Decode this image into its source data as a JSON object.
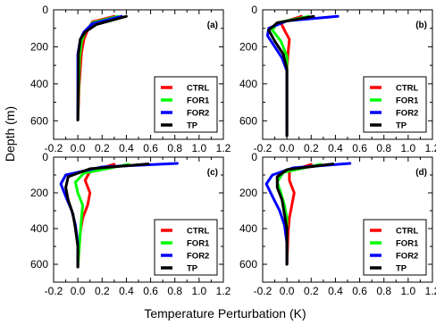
{
  "figure": {
    "ylabel": "Depth (m)",
    "xlabel": "Temperature Perturbation (K)",
    "legend_position": "lower-right",
    "grid": false
  },
  "series_styles": [
    {
      "name": "CTRL",
      "color": "#ff0000"
    },
    {
      "name": "FOR1",
      "color": "#00ff00"
    },
    {
      "name": "FOR2",
      "color": "#0000ff"
    },
    {
      "name": "TP",
      "color": "#000000"
    }
  ],
  "axes": {
    "xlim": [
      -0.2,
      1.2
    ],
    "xticks": [
      -0.2,
      0,
      0.2,
      0.4,
      0.6,
      0.8,
      1,
      1.2
    ],
    "xtick_labels": [
      "-0.2",
      "0.0",
      "0.2",
      "0.4",
      "0.6",
      "0.8",
      "1.0",
      "1.2"
    ],
    "ylim": [
      0,
      700
    ],
    "yticks": [
      0,
      200,
      400,
      600
    ],
    "ytick_labels": [
      "0",
      "200",
      "400",
      "600"
    ],
    "y_inverted": true
  },
  "chart_data": [
    {
      "type": "line",
      "panel_label": "(a)",
      "series": [
        {
          "name": "CTRL",
          "color": "#ff0000",
          "points": [
            [
              0.3,
              35
            ],
            [
              0.12,
              65
            ],
            [
              0.08,
              110
            ],
            [
              0.05,
              160
            ],
            [
              0.03,
              230
            ],
            [
              0.02,
              320
            ],
            [
              0.01,
              420
            ],
            [
              0.005,
              520
            ],
            [
              0.0,
              595
            ]
          ]
        },
        {
          "name": "FOR1",
          "color": "#00ff00",
          "points": [
            [
              0.33,
              35
            ],
            [
              0.12,
              70
            ],
            [
              0.06,
              120
            ],
            [
              0.03,
              170
            ],
            [
              0.015,
              250
            ],
            [
              0.01,
              350
            ],
            [
              0.005,
              450
            ],
            [
              0.0,
              595
            ]
          ]
        },
        {
          "name": "FOR2",
          "color": "#0000ff",
          "points": [
            [
              0.36,
              35
            ],
            [
              0.12,
              75
            ],
            [
              0.05,
              120
            ],
            [
              0.02,
              160
            ],
            [
              0.0,
              240
            ],
            [
              0.0,
              350
            ],
            [
              0.0,
              460
            ],
            [
              0.0,
              595
            ]
          ]
        },
        {
          "name": "TP",
          "color": "#000000",
          "points": [
            [
              0.4,
              35
            ],
            [
              0.15,
              80
            ],
            [
              0.06,
              120
            ],
            [
              0.02,
              160
            ],
            [
              0.005,
              240
            ],
            [
              0.005,
              350
            ],
            [
              0.002,
              460
            ],
            [
              0.0,
              595
            ]
          ]
        }
      ]
    },
    {
      "type": "line",
      "panel_label": "(b)",
      "series": [
        {
          "name": "CTRL",
          "color": "#ff0000",
          "points": [
            [
              0.12,
              35
            ],
            [
              -0.05,
              70
            ],
            [
              -0.02,
              110
            ],
            [
              0.02,
              160
            ],
            [
              0.01,
              230
            ],
            [
              0.0,
              320
            ],
            [
              0.0,
              450
            ],
            [
              0.0,
              600
            ],
            [
              0.0,
              680
            ]
          ]
        },
        {
          "name": "FOR1",
          "color": "#00ff00",
          "points": [
            [
              0.18,
              35
            ],
            [
              -0.08,
              70
            ],
            [
              -0.12,
              110
            ],
            [
              -0.05,
              170
            ],
            [
              0.0,
              250
            ],
            [
              0.0,
              350
            ],
            [
              0.0,
              480
            ],
            [
              0.0,
              620
            ],
            [
              0.0,
              680
            ]
          ]
        },
        {
          "name": "FOR2",
          "color": "#0000ff",
          "points": [
            [
              0.42,
              35
            ],
            [
              0.0,
              60
            ],
            [
              -0.15,
              100
            ],
            [
              -0.16,
              140
            ],
            [
              -0.1,
              200
            ],
            [
              -0.04,
              260
            ],
            [
              0.0,
              330
            ],
            [
              0.0,
              480
            ],
            [
              0.0,
              680
            ]
          ]
        },
        {
          "name": "TP",
          "color": "#000000",
          "points": [
            [
              0.22,
              35
            ],
            [
              -0.08,
              70
            ],
            [
              -0.15,
              110
            ],
            [
              -0.1,
              170
            ],
            [
              -0.03,
              240
            ],
            [
              0.0,
              320
            ],
            [
              0.0,
              450
            ],
            [
              0.0,
              600
            ],
            [
              0.0,
              680
            ]
          ]
        }
      ]
    },
    {
      "type": "line",
      "panel_label": "(c)",
      "series": [
        {
          "name": "CTRL",
          "color": "#ff0000",
          "points": [
            [
              0.3,
              40
            ],
            [
              0.1,
              80
            ],
            [
              0.06,
              130
            ],
            [
              0.1,
              200
            ],
            [
              0.08,
              270
            ],
            [
              0.04,
              340
            ],
            [
              0.02,
              420
            ],
            [
              0.01,
              520
            ],
            [
              0.0,
              615
            ]
          ]
        },
        {
          "name": "FOR1",
          "color": "#00ff00",
          "points": [
            [
              0.42,
              40
            ],
            [
              0.05,
              90
            ],
            [
              -0.02,
              140
            ],
            [
              0.0,
              200
            ],
            [
              0.04,
              270
            ],
            [
              0.03,
              340
            ],
            [
              0.02,
              420
            ],
            [
              0.01,
              520
            ],
            [
              0.0,
              615
            ]
          ]
        },
        {
          "name": "FOR2",
          "color": "#0000ff",
          "points": [
            [
              0.82,
              35
            ],
            [
              0.2,
              55
            ],
            [
              -0.1,
              100
            ],
            [
              -0.14,
              150
            ],
            [
              -0.1,
              220
            ],
            [
              -0.05,
              300
            ],
            [
              -0.02,
              380
            ],
            [
              0.0,
              480
            ],
            [
              0.0,
              615
            ]
          ]
        },
        {
          "name": "TP",
          "color": "#000000",
          "points": [
            [
              0.58,
              38
            ],
            [
              0.1,
              65
            ],
            [
              -0.08,
              110
            ],
            [
              -0.1,
              170
            ],
            [
              -0.08,
              240
            ],
            [
              -0.04,
              320
            ],
            [
              -0.02,
              400
            ],
            [
              0.0,
              500
            ],
            [
              0.0,
              615
            ]
          ]
        }
      ]
    },
    {
      "type": "line",
      "panel_label": "(d)",
      "series": [
        {
          "name": "CTRL",
          "color": "#ff0000",
          "points": [
            [
              0.2,
              40
            ],
            [
              0.02,
              80
            ],
            [
              0.02,
              130
            ],
            [
              0.06,
              200
            ],
            [
              0.04,
              270
            ],
            [
              0.02,
              340
            ],
            [
              0.01,
              420
            ],
            [
              0.005,
              520
            ],
            [
              0.0,
              600
            ]
          ]
        },
        {
          "name": "FOR1",
          "color": "#00ff00",
          "points": [
            [
              0.28,
              40
            ],
            [
              -0.03,
              85
            ],
            [
              -0.08,
              140
            ],
            [
              -0.05,
              200
            ],
            [
              -0.02,
              270
            ],
            [
              0.0,
              340
            ],
            [
              0.0,
              420
            ],
            [
              0.0,
              520
            ],
            [
              0.0,
              600
            ]
          ]
        },
        {
          "name": "FOR2",
          "color": "#0000ff",
          "points": [
            [
              0.52,
              35
            ],
            [
              0.05,
              60
            ],
            [
              -0.12,
              100
            ],
            [
              -0.17,
              150
            ],
            [
              -0.12,
              220
            ],
            [
              -0.06,
              300
            ],
            [
              -0.02,
              380
            ],
            [
              0.0,
              480
            ],
            [
              0.0,
              600
            ]
          ]
        },
        {
          "name": "TP",
          "color": "#000000",
          "points": [
            [
              0.38,
              38
            ],
            [
              0.0,
              70
            ],
            [
              -0.08,
              110
            ],
            [
              -0.08,
              170
            ],
            [
              -0.04,
              240
            ],
            [
              -0.02,
              320
            ],
            [
              0.0,
              400
            ],
            [
              0.0,
              500
            ],
            [
              0.0,
              600
            ]
          ]
        }
      ]
    }
  ]
}
